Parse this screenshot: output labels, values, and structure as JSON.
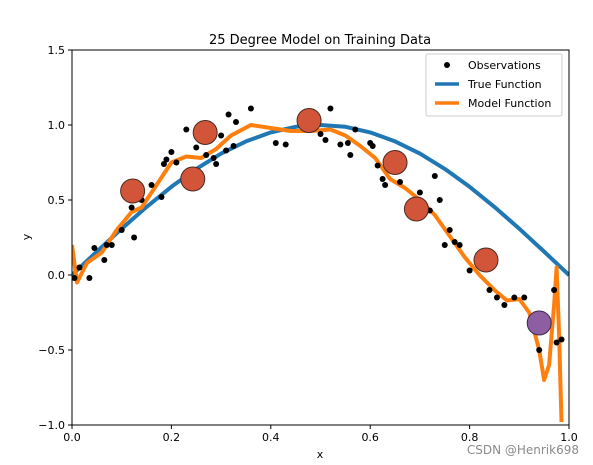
{
  "chart_data": {
    "type": "scatter",
    "title": "25 Degree Model on Training Data",
    "xlabel": "x",
    "ylabel": "y",
    "xlim": [
      0.0,
      1.0
    ],
    "ylim": [
      -1.0,
      1.5
    ],
    "xticks": [
      "0.0",
      "0.2",
      "0.4",
      "0.6",
      "0.8",
      "1.0"
    ],
    "yticks": [
      "−1.0",
      "−0.5",
      "0.0",
      "0.5",
      "1.0",
      "1.5"
    ],
    "legend_position": "top-right",
    "legend": [
      "Observations",
      "True Function",
      "Model Function"
    ],
    "colors": {
      "observations": "#000000",
      "true_function": "#1f77b4",
      "model_function": "#ff7f0e",
      "highlight": "#d2553a",
      "highlight_special": "#8e5ea2"
    },
    "observations": [
      [
        0.005,
        -0.02
      ],
      [
        0.015,
        0.05
      ],
      [
        0.035,
        -0.02
      ],
      [
        0.045,
        0.18
      ],
      [
        0.065,
        0.1
      ],
      [
        0.07,
        0.2
      ],
      [
        0.08,
        0.2
      ],
      [
        0.1,
        0.3
      ],
      [
        0.12,
        0.45
      ],
      [
        0.125,
        0.25
      ],
      [
        0.14,
        0.5
      ],
      [
        0.16,
        0.6
      ],
      [
        0.18,
        0.52
      ],
      [
        0.185,
        0.74
      ],
      [
        0.19,
        0.77
      ],
      [
        0.2,
        0.82
      ],
      [
        0.21,
        0.75
      ],
      [
        0.23,
        0.97
      ],
      [
        0.25,
        0.85
      ],
      [
        0.27,
        0.8
      ],
      [
        0.285,
        0.78
      ],
      [
        0.29,
        0.74
      ],
      [
        0.3,
        0.93
      ],
      [
        0.31,
        0.83
      ],
      [
        0.315,
        1.07
      ],
      [
        0.325,
        0.86
      ],
      [
        0.33,
        1.02
      ],
      [
        0.36,
        1.11
      ],
      [
        0.41,
        0.88
      ],
      [
        0.43,
        0.87
      ],
      [
        0.48,
        1.04
      ],
      [
        0.5,
        0.94
      ],
      [
        0.51,
        0.9
      ],
      [
        0.52,
        1.11
      ],
      [
        0.54,
        0.87
      ],
      [
        0.555,
        0.88
      ],
      [
        0.56,
        0.8
      ],
      [
        0.57,
        0.97
      ],
      [
        0.6,
        0.88
      ],
      [
        0.605,
        0.86
      ],
      [
        0.615,
        0.73
      ],
      [
        0.625,
        0.64
      ],
      [
        0.63,
        0.6
      ],
      [
        0.645,
        0.73
      ],
      [
        0.66,
        0.62
      ],
      [
        0.7,
        0.55
      ],
      [
        0.72,
        0.43
      ],
      [
        0.73,
        0.66
      ],
      [
        0.74,
        0.5
      ],
      [
        0.75,
        0.2
      ],
      [
        0.76,
        0.3
      ],
      [
        0.77,
        0.22
      ],
      [
        0.78,
        0.2
      ],
      [
        0.8,
        0.03
      ],
      [
        0.82,
        0.1
      ],
      [
        0.84,
        -0.1
      ],
      [
        0.855,
        -0.15
      ],
      [
        0.87,
        -0.2
      ],
      [
        0.89,
        -0.15
      ],
      [
        0.91,
        -0.15
      ],
      [
        0.93,
        -0.3
      ],
      [
        0.94,
        -0.5
      ],
      [
        0.97,
        -0.1
      ],
      [
        0.975,
        -0.45
      ],
      [
        0.985,
        -0.43
      ]
    ],
    "true_function": [
      [
        0.0,
        0.0
      ],
      [
        0.05,
        0.156
      ],
      [
        0.1,
        0.309
      ],
      [
        0.15,
        0.454
      ],
      [
        0.2,
        0.588
      ],
      [
        0.25,
        0.707
      ],
      [
        0.3,
        0.809
      ],
      [
        0.35,
        0.891
      ],
      [
        0.4,
        0.951
      ],
      [
        0.45,
        0.988
      ],
      [
        0.5,
        1.0
      ],
      [
        0.55,
        0.988
      ],
      [
        0.6,
        0.951
      ],
      [
        0.65,
        0.891
      ],
      [
        0.7,
        0.809
      ],
      [
        0.75,
        0.707
      ],
      [
        0.8,
        0.588
      ],
      [
        0.85,
        0.454
      ],
      [
        0.9,
        0.309
      ],
      [
        0.95,
        0.156
      ],
      [
        1.0,
        0.0
      ]
    ],
    "model_function": [
      [
        0.0,
        0.2
      ],
      [
        0.01,
        -0.05
      ],
      [
        0.03,
        0.08
      ],
      [
        0.06,
        0.15
      ],
      [
        0.09,
        0.3
      ],
      [
        0.12,
        0.42
      ],
      [
        0.14,
        0.45
      ],
      [
        0.17,
        0.6
      ],
      [
        0.2,
        0.75
      ],
      [
        0.23,
        0.79
      ],
      [
        0.26,
        0.78
      ],
      [
        0.29,
        0.84
      ],
      [
        0.32,
        0.93
      ],
      [
        0.36,
        1.0
      ],
      [
        0.4,
        0.98
      ],
      [
        0.44,
        0.96
      ],
      [
        0.48,
        0.96
      ],
      [
        0.52,
        0.97
      ],
      [
        0.55,
        0.93
      ],
      [
        0.58,
        0.86
      ],
      [
        0.61,
        0.78
      ],
      [
        0.64,
        0.64
      ],
      [
        0.67,
        0.58
      ],
      [
        0.7,
        0.5
      ],
      [
        0.73,
        0.4
      ],
      [
        0.76,
        0.26
      ],
      [
        0.79,
        0.12
      ],
      [
        0.82,
        0.0
      ],
      [
        0.85,
        -0.1
      ],
      [
        0.875,
        -0.17
      ],
      [
        0.9,
        -0.16
      ],
      [
        0.92,
        -0.25
      ],
      [
        0.94,
        -0.5
      ],
      [
        0.95,
        -0.7
      ],
      [
        0.96,
        -0.6
      ],
      [
        0.97,
        -0.2
      ],
      [
        0.975,
        0.05
      ],
      [
        0.98,
        -0.4
      ],
      [
        0.985,
        -0.98
      ]
    ],
    "highlighted_points": [
      [
        0.122,
        0.56
      ],
      [
        0.243,
        0.64
      ],
      [
        0.268,
        0.95
      ],
      [
        0.477,
        1.03
      ],
      [
        0.65,
        0.75
      ],
      [
        0.693,
        0.44
      ],
      [
        0.833,
        0.1
      ]
    ],
    "highlighted_special": [
      [
        0.94,
        -0.32
      ]
    ]
  },
  "watermark": "CSDN @Henrik698"
}
